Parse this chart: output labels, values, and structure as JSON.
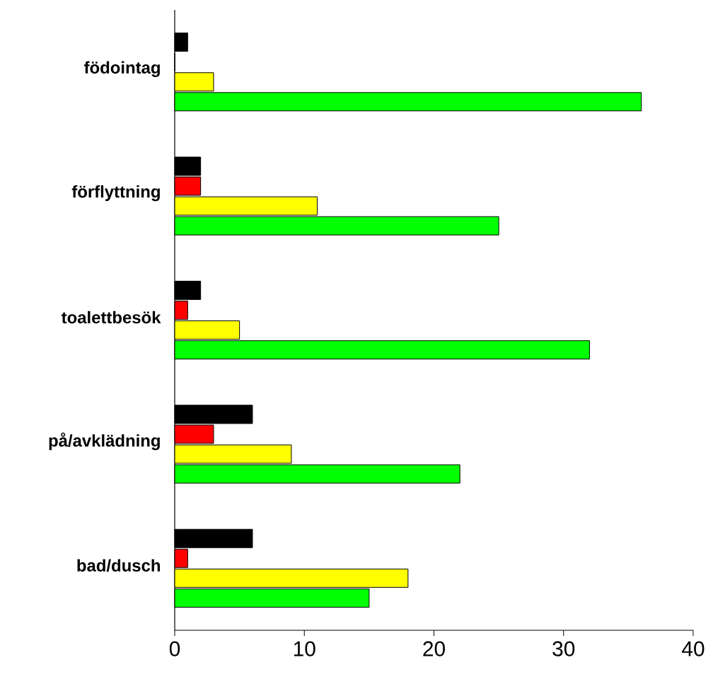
{
  "chart_data": {
    "type": "bar",
    "orientation": "horizontal",
    "categories": [
      "födointag",
      "förflyttning",
      "toalettbesök",
      "på/avklädning",
      "bad/dusch"
    ],
    "series": [
      {
        "color": "#000000",
        "values": [
          1,
          2,
          2,
          6,
          6
        ]
      },
      {
        "color": "#ff0000",
        "values": [
          0,
          2,
          1,
          3,
          1
        ]
      },
      {
        "color": "#ffff00",
        "values": [
          3,
          11,
          5,
          9,
          18
        ]
      },
      {
        "color": "#00ff00",
        "values": [
          36,
          25,
          32,
          22,
          15
        ]
      }
    ],
    "xlim": [
      0,
      40
    ],
    "xticks": [
      0,
      10,
      20,
      30,
      40
    ]
  }
}
